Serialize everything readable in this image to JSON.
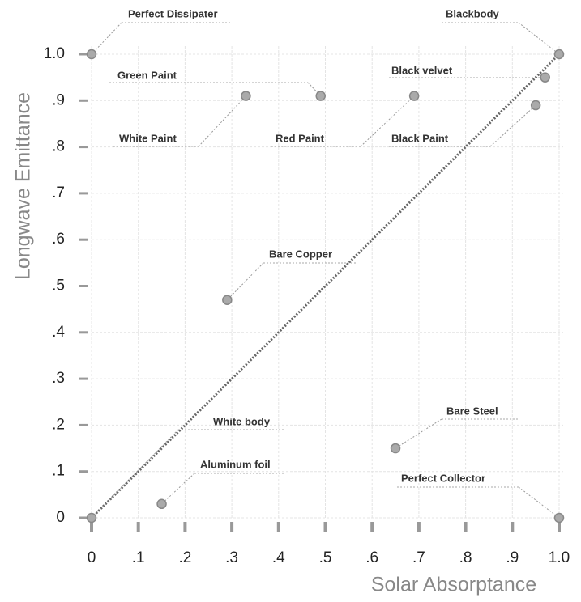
{
  "chart_data": {
    "type": "scatter",
    "xlabel": "Solar Absorptance",
    "ylabel": "Longwave Emittance",
    "xlim": [
      0,
      1
    ],
    "ylim": [
      0,
      1
    ],
    "xticks": [
      0,
      {
        "value": 0.1,
        "label": ".1"
      },
      {
        "value": 0.2,
        "label": ".2"
      },
      {
        "value": 0.3,
        "label": ".3"
      },
      {
        "value": 0.4,
        "label": ".4"
      },
      {
        "value": 0.5,
        "label": ".5"
      },
      {
        "value": 0.6,
        "label": ".6"
      },
      {
        "value": 0.7,
        "label": ".7"
      },
      {
        "value": 0.8,
        "label": ".8"
      },
      {
        "value": 0.9,
        "label": ".9"
      },
      {
        "value": 1,
        "label": "1.0"
      }
    ],
    "yticks": [
      0,
      {
        "value": 0.1,
        "label": ".1"
      },
      {
        "value": 0.2,
        "label": ".2"
      },
      {
        "value": 0.3,
        "label": ".3"
      },
      {
        "value": 0.4,
        "label": ".4"
      },
      {
        "value": 0.5,
        "label": ".5"
      },
      {
        "value": 0.6,
        "label": ".6"
      },
      {
        "value": 0.7,
        "label": ".7"
      },
      {
        "value": 0.8,
        "label": ".8"
      },
      {
        "value": 0.9,
        "label": ".9"
      },
      {
        "value": 1,
        "label": "1.0"
      }
    ],
    "grid": true,
    "color": "#aaaaaa",
    "point_labels": [
      "Perfect Dissipater",
      "Blackbody",
      "Green Paint",
      "White Paint",
      "Red Paint",
      "Black  velvet",
      "Black Paint",
      "Bare Copper",
      "Bare Steel",
      "White body",
      "Aluminum foil",
      "Perfect Collector"
    ],
    "x": [
      0,
      1,
      0.49,
      0.33,
      0.69,
      0.97,
      0.95,
      0.29,
      0.65,
      0,
      0.15,
      1
    ],
    "values": [
      1,
      1,
      0.91,
      0.91,
      0.91,
      0.95,
      0.89,
      0.47,
      0.15,
      0,
      0.03,
      0
    ]
  }
}
